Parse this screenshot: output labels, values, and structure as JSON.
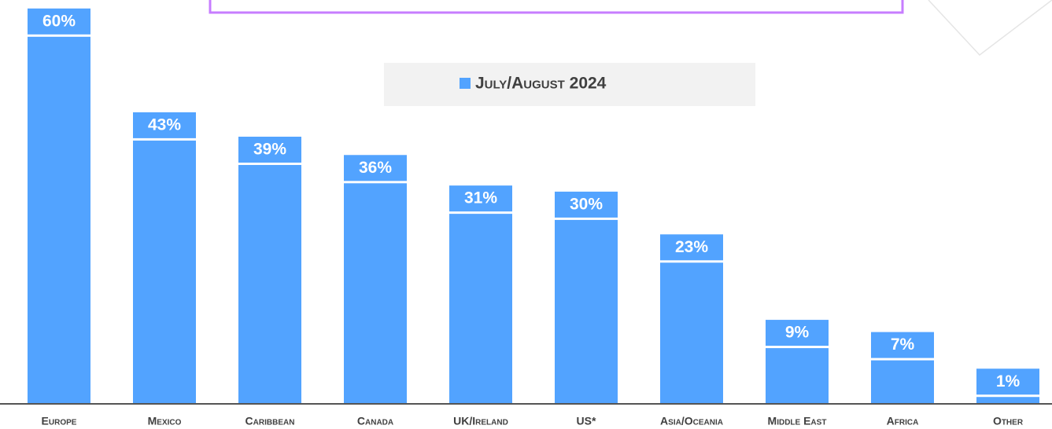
{
  "chart_data": {
    "type": "bar",
    "categories": [
      "Europe",
      "Mexico",
      "Caribbean",
      "Canada",
      "UK/Ireland",
      "US*",
      "Asia/Oceania",
      "Middle East",
      "Africa",
      "Other"
    ],
    "series": [
      {
        "name": "July/August 2024",
        "color": "#52a3ff",
        "values": [
          60,
          43,
          39,
          36,
          31,
          30,
          23,
          9,
          7,
          1
        ],
        "value_labels": [
          "60%",
          "43%",
          "39%",
          "36%",
          "31%",
          "30%",
          "23%",
          "9%",
          "7%",
          "1%"
        ]
      }
    ]
  }
}
